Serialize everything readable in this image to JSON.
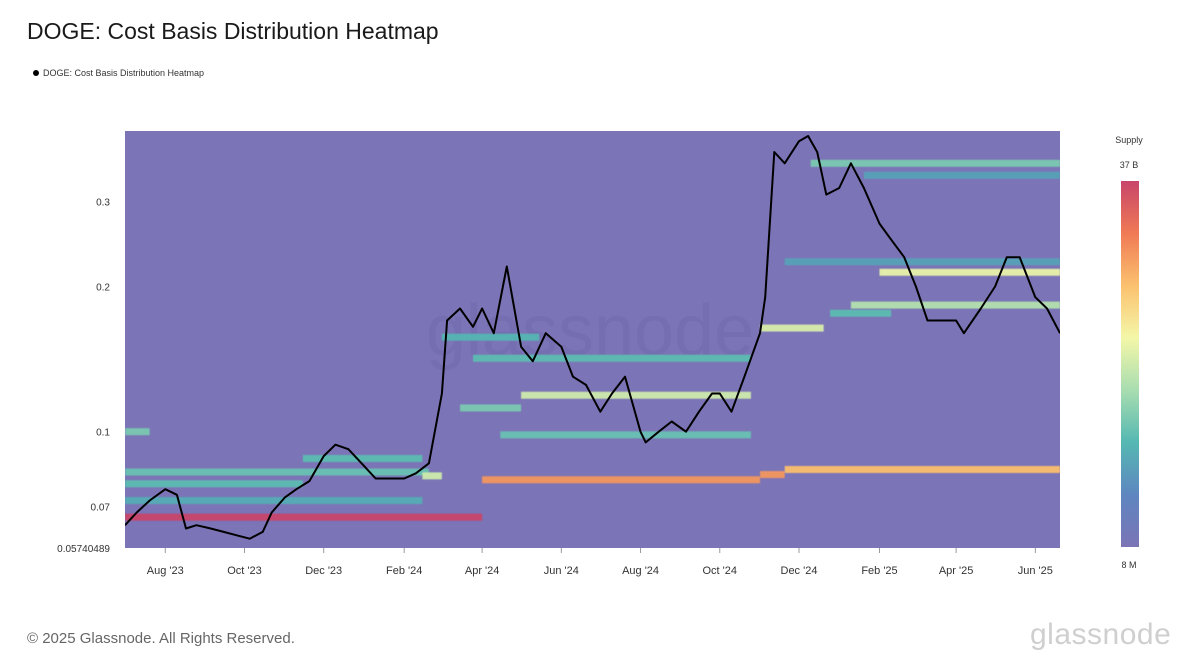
{
  "title": "DOGE: Cost Basis Distribution Heatmap",
  "legend": {
    "label": "DOGE: Cost Basis Distribution Heatmap"
  },
  "colorbar": {
    "title": "Supply",
    "max_label": "37 B",
    "min_label": "8 M",
    "colors": [
      "#c8456a",
      "#f07a55",
      "#fbc16f",
      "#f4f7a8",
      "#a8ddb0",
      "#55b8b2",
      "#5e86c0",
      "#7b74b6"
    ]
  },
  "footer": {
    "copyright": "© 2025 Glassnode. All Rights Reserved.",
    "brand": "glassnode"
  },
  "watermark": "glassnode",
  "chart_data": {
    "type": "heatmap",
    "y_scale": "log",
    "ylim": [
      0.05740489,
      0.42
    ],
    "y_ticks": [
      {
        "value": 0.05740489,
        "label": "0.05740489"
      },
      {
        "value": 0.07,
        "label": "0.07"
      },
      {
        "value": 0.1,
        "label": "0.1"
      },
      {
        "value": 0.2,
        "label": "0.2"
      },
      {
        "value": 0.3,
        "label": "0.3"
      }
    ],
    "xlim": [
      "2023-07-01",
      "2025-06-20"
    ],
    "x_ticks": [
      {
        "date": "2023-08-01",
        "label": "Aug '23"
      },
      {
        "date": "2023-10-01",
        "label": "Oct '23"
      },
      {
        "date": "2023-12-01",
        "label": "Dec '23"
      },
      {
        "date": "2024-02-01",
        "label": "Feb '24"
      },
      {
        "date": "2024-04-01",
        "label": "Apr '24"
      },
      {
        "date": "2024-06-01",
        "label": "Jun '24"
      },
      {
        "date": "2024-08-01",
        "label": "Aug '24"
      },
      {
        "date": "2024-10-01",
        "label": "Oct '24"
      },
      {
        "date": "2024-12-01",
        "label": "Dec '24"
      },
      {
        "date": "2025-02-01",
        "label": "Feb '25"
      },
      {
        "date": "2025-04-01",
        "label": "Apr '25"
      },
      {
        "date": "2025-06-01",
        "label": "Jun '25"
      }
    ],
    "heatmap_bands": [
      {
        "start": "2023-07-01",
        "end": "2024-04-01",
        "price": 0.0665,
        "intensity": 1.0
      },
      {
        "start": "2024-04-01",
        "end": "2024-11-01",
        "price": 0.0795,
        "intensity": 0.8
      },
      {
        "start": "2024-11-01",
        "end": "2024-11-20",
        "price": 0.0815,
        "intensity": 0.8
      },
      {
        "start": "2024-11-20",
        "end": "2025-06-20",
        "price": 0.0835,
        "intensity": 0.72
      },
      {
        "start": "2023-07-01",
        "end": "2024-02-20",
        "price": 0.0825,
        "intensity": 0.32
      },
      {
        "start": "2023-07-01",
        "end": "2023-07-20",
        "price": 0.1,
        "intensity": 0.35
      },
      {
        "start": "2023-07-01",
        "end": "2023-11-15",
        "price": 0.078,
        "intensity": 0.3
      },
      {
        "start": "2023-07-01",
        "end": "2024-02-15",
        "price": 0.072,
        "intensity": 0.25
      },
      {
        "start": "2024-02-15",
        "end": "2024-03-01",
        "price": 0.081,
        "intensity": 0.5
      },
      {
        "start": "2023-11-15",
        "end": "2024-02-15",
        "price": 0.088,
        "intensity": 0.3
      },
      {
        "start": "2024-03-15",
        "end": "2024-05-01",
        "price": 0.112,
        "intensity": 0.35
      },
      {
        "start": "2024-05-01",
        "end": "2024-10-25",
        "price": 0.119,
        "intensity": 0.5
      },
      {
        "start": "2024-04-15",
        "end": "2024-10-25",
        "price": 0.0985,
        "intensity": 0.32
      },
      {
        "start": "2024-03-25",
        "end": "2024-10-25",
        "price": 0.142,
        "intensity": 0.3
      },
      {
        "start": "2024-03-01",
        "end": "2024-05-15",
        "price": 0.157,
        "intensity": 0.28
      },
      {
        "start": "2024-11-01",
        "end": "2024-12-20",
        "price": 0.164,
        "intensity": 0.52
      },
      {
        "start": "2024-12-25",
        "end": "2025-02-10",
        "price": 0.176,
        "intensity": 0.3
      },
      {
        "start": "2025-01-10",
        "end": "2025-06-20",
        "price": 0.183,
        "intensity": 0.45
      },
      {
        "start": "2025-02-01",
        "end": "2025-06-20",
        "price": 0.214,
        "intensity": 0.55
      },
      {
        "start": "2024-11-20",
        "end": "2025-06-20",
        "price": 0.225,
        "intensity": 0.22
      },
      {
        "start": "2024-12-10",
        "end": "2025-06-20",
        "price": 0.36,
        "intensity": 0.35
      },
      {
        "start": "2025-01-20",
        "end": "2025-06-20",
        "price": 0.34,
        "intensity": 0.22
      }
    ],
    "series": [
      {
        "type": "line",
        "x": [
          "2023-07-01",
          "2023-07-10",
          "2023-07-20",
          "2023-08-01",
          "2023-08-10",
          "2023-08-17",
          "2023-08-25",
          "2023-09-05",
          "2023-09-15",
          "2023-09-25",
          "2023-10-05",
          "2023-10-15",
          "2023-10-22",
          "2023-11-01",
          "2023-11-10",
          "2023-11-20",
          "2023-12-01",
          "2023-12-10",
          "2023-12-20",
          "2024-01-01",
          "2024-01-10",
          "2024-01-20",
          "2024-02-01",
          "2024-02-10",
          "2024-02-20",
          "2024-03-01",
          "2024-03-05",
          "2024-03-15",
          "2024-03-25",
          "2024-04-01",
          "2024-04-10",
          "2024-04-20",
          "2024-05-01",
          "2024-05-10",
          "2024-05-20",
          "2024-06-01",
          "2024-06-10",
          "2024-06-20",
          "2024-07-01",
          "2024-07-10",
          "2024-07-20",
          "2024-08-01",
          "2024-08-05",
          "2024-08-15",
          "2024-08-25",
          "2024-09-05",
          "2024-09-15",
          "2024-09-25",
          "2024-10-01",
          "2024-10-10",
          "2024-10-20",
          "2024-11-01",
          "2024-11-05",
          "2024-11-12",
          "2024-11-20",
          "2024-12-01",
          "2024-12-08",
          "2024-12-15",
          "2024-12-22",
          "2025-01-01",
          "2025-01-10",
          "2025-01-20",
          "2025-02-01",
          "2025-02-10",
          "2025-02-20",
          "2025-03-01",
          "2025-03-10",
          "2025-03-20",
          "2025-04-01",
          "2025-04-07",
          "2025-04-20",
          "2025-05-01",
          "2025-05-10",
          "2025-05-20",
          "2025-06-01",
          "2025-06-10",
          "2025-06-20"
        ],
        "y": [
          0.064,
          0.068,
          0.072,
          0.076,
          0.074,
          0.063,
          0.064,
          0.063,
          0.062,
          0.061,
          0.06,
          0.062,
          0.068,
          0.073,
          0.076,
          0.079,
          0.089,
          0.094,
          0.092,
          0.085,
          0.08,
          0.08,
          0.08,
          0.082,
          0.086,
          0.12,
          0.17,
          0.18,
          0.165,
          0.18,
          0.16,
          0.22,
          0.15,
          0.14,
          0.16,
          0.15,
          0.13,
          0.125,
          0.11,
          0.12,
          0.13,
          0.1,
          0.095,
          0.1,
          0.105,
          0.1,
          0.11,
          0.12,
          0.12,
          0.11,
          0.13,
          0.16,
          0.19,
          0.38,
          0.36,
          0.4,
          0.41,
          0.38,
          0.31,
          0.32,
          0.36,
          0.32,
          0.27,
          0.25,
          0.23,
          0.2,
          0.17,
          0.17,
          0.17,
          0.16,
          0.18,
          0.2,
          0.23,
          0.23,
          0.19,
          0.18,
          0.16
        ]
      }
    ]
  }
}
